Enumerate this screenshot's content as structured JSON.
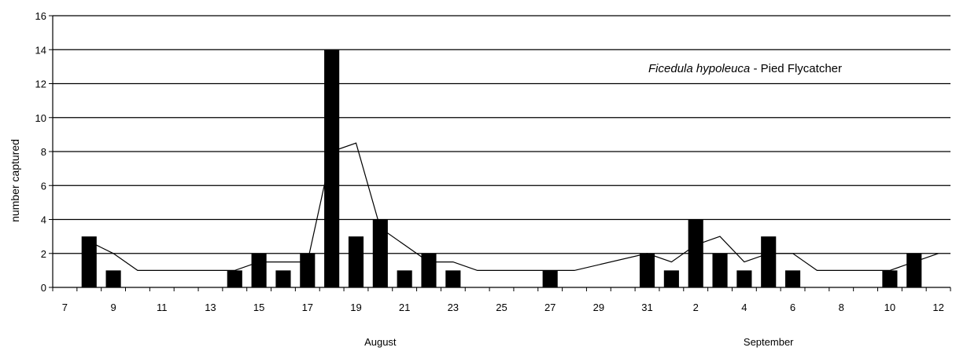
{
  "chart_data": {
    "type": "bar",
    "title": "",
    "ylabel": "number captured",
    "ylim": [
      0,
      16
    ],
    "yticks": [
      0,
      2,
      4,
      6,
      8,
      10,
      12,
      14,
      16
    ],
    "grid": true,
    "annotation": {
      "species": "Ficedula hypoleuca",
      "separator": " - ",
      "common_name": "Pied Flycatcher",
      "placement": "top-right"
    },
    "month_labels": [
      {
        "label": "August",
        "center_date": "2000-08-20"
      },
      {
        "label": "September",
        "center_date": "2000-09-05"
      }
    ],
    "x_ticks": [
      {
        "date": "2000-08-07",
        "label": "7"
      },
      {
        "date": "2000-08-09",
        "label": "9"
      },
      {
        "date": "2000-08-11",
        "label": "11"
      },
      {
        "date": "2000-08-13",
        "label": "13"
      },
      {
        "date": "2000-08-15",
        "label": "15"
      },
      {
        "date": "2000-08-17",
        "label": "17"
      },
      {
        "date": "2000-08-19",
        "label": "19"
      },
      {
        "date": "2000-08-21",
        "label": "21"
      },
      {
        "date": "2000-08-23",
        "label": "23"
      },
      {
        "date": "2000-08-25",
        "label": "25"
      },
      {
        "date": "2000-08-27",
        "label": "27"
      },
      {
        "date": "2000-08-29",
        "label": "29"
      },
      {
        "date": "2000-08-31",
        "label": "31"
      },
      {
        "date": "2000-09-02",
        "label": "2"
      },
      {
        "date": "2000-09-04",
        "label": "4"
      },
      {
        "date": "2000-09-06",
        "label": "6"
      },
      {
        "date": "2000-09-08",
        "label": "8"
      },
      {
        "date": "2000-09-10",
        "label": "10"
      },
      {
        "date": "2000-09-12",
        "label": "12"
      }
    ],
    "series": [
      {
        "type": "bar",
        "color": "#000000",
        "points": [
          {
            "date": "2000-08-08",
            "value": 3
          },
          {
            "date": "2000-08-09",
            "value": 1
          },
          {
            "date": "2000-08-14",
            "value": 1
          },
          {
            "date": "2000-08-15",
            "value": 2
          },
          {
            "date": "2000-08-16",
            "value": 1
          },
          {
            "date": "2000-08-17",
            "value": 2
          },
          {
            "date": "2000-08-18",
            "value": 14
          },
          {
            "date": "2000-08-19",
            "value": 3
          },
          {
            "date": "2000-08-20",
            "value": 4
          },
          {
            "date": "2000-08-21",
            "value": 1
          },
          {
            "date": "2000-08-22",
            "value": 2
          },
          {
            "date": "2000-08-23",
            "value": 1
          },
          {
            "date": "2000-08-27",
            "value": 1
          },
          {
            "date": "2000-08-31",
            "value": 2
          },
          {
            "date": "2000-09-01",
            "value": 1
          },
          {
            "date": "2000-09-02",
            "value": 4
          },
          {
            "date": "2000-09-03",
            "value": 2
          },
          {
            "date": "2000-09-04",
            "value": 1
          },
          {
            "date": "2000-09-05",
            "value": 3
          },
          {
            "date": "2000-09-06",
            "value": 1
          },
          {
            "date": "2000-09-10",
            "value": 1
          },
          {
            "date": "2000-09-11",
            "value": 2
          }
        ]
      },
      {
        "type": "line",
        "color": "#000000",
        "points": [
          {
            "date": "2000-08-08",
            "value": 2.7
          },
          {
            "date": "2000-08-09",
            "value": 2.0
          },
          {
            "date": "2000-08-10",
            "value": 1.0
          },
          {
            "date": "2000-08-14",
            "value": 1.0
          },
          {
            "date": "2000-08-15",
            "value": 1.5
          },
          {
            "date": "2000-08-16",
            "value": 1.5
          },
          {
            "date": "2000-08-17",
            "value": 1.5
          },
          {
            "date": "2000-08-18",
            "value": 8.0
          },
          {
            "date": "2000-08-19",
            "value": 8.5
          },
          {
            "date": "2000-08-20",
            "value": 3.5
          },
          {
            "date": "2000-08-21",
            "value": 2.5
          },
          {
            "date": "2000-08-22",
            "value": 1.5
          },
          {
            "date": "2000-08-23",
            "value": 1.5
          },
          {
            "date": "2000-08-24",
            "value": 1.0
          },
          {
            "date": "2000-08-28",
            "value": 1.0
          },
          {
            "date": "2000-08-31",
            "value": 2.0
          },
          {
            "date": "2000-09-01",
            "value": 1.5
          },
          {
            "date": "2000-09-02",
            "value": 2.5
          },
          {
            "date": "2000-09-03",
            "value": 3.0
          },
          {
            "date": "2000-09-04",
            "value": 1.5
          },
          {
            "date": "2000-09-05",
            "value": 2.0
          },
          {
            "date": "2000-09-06",
            "value": 2.0
          },
          {
            "date": "2000-09-07",
            "value": 1.0
          },
          {
            "date": "2000-09-10",
            "value": 1.0
          },
          {
            "date": "2000-09-11",
            "value": 1.5
          },
          {
            "date": "2000-09-12",
            "value": 2.0
          }
        ]
      }
    ]
  }
}
